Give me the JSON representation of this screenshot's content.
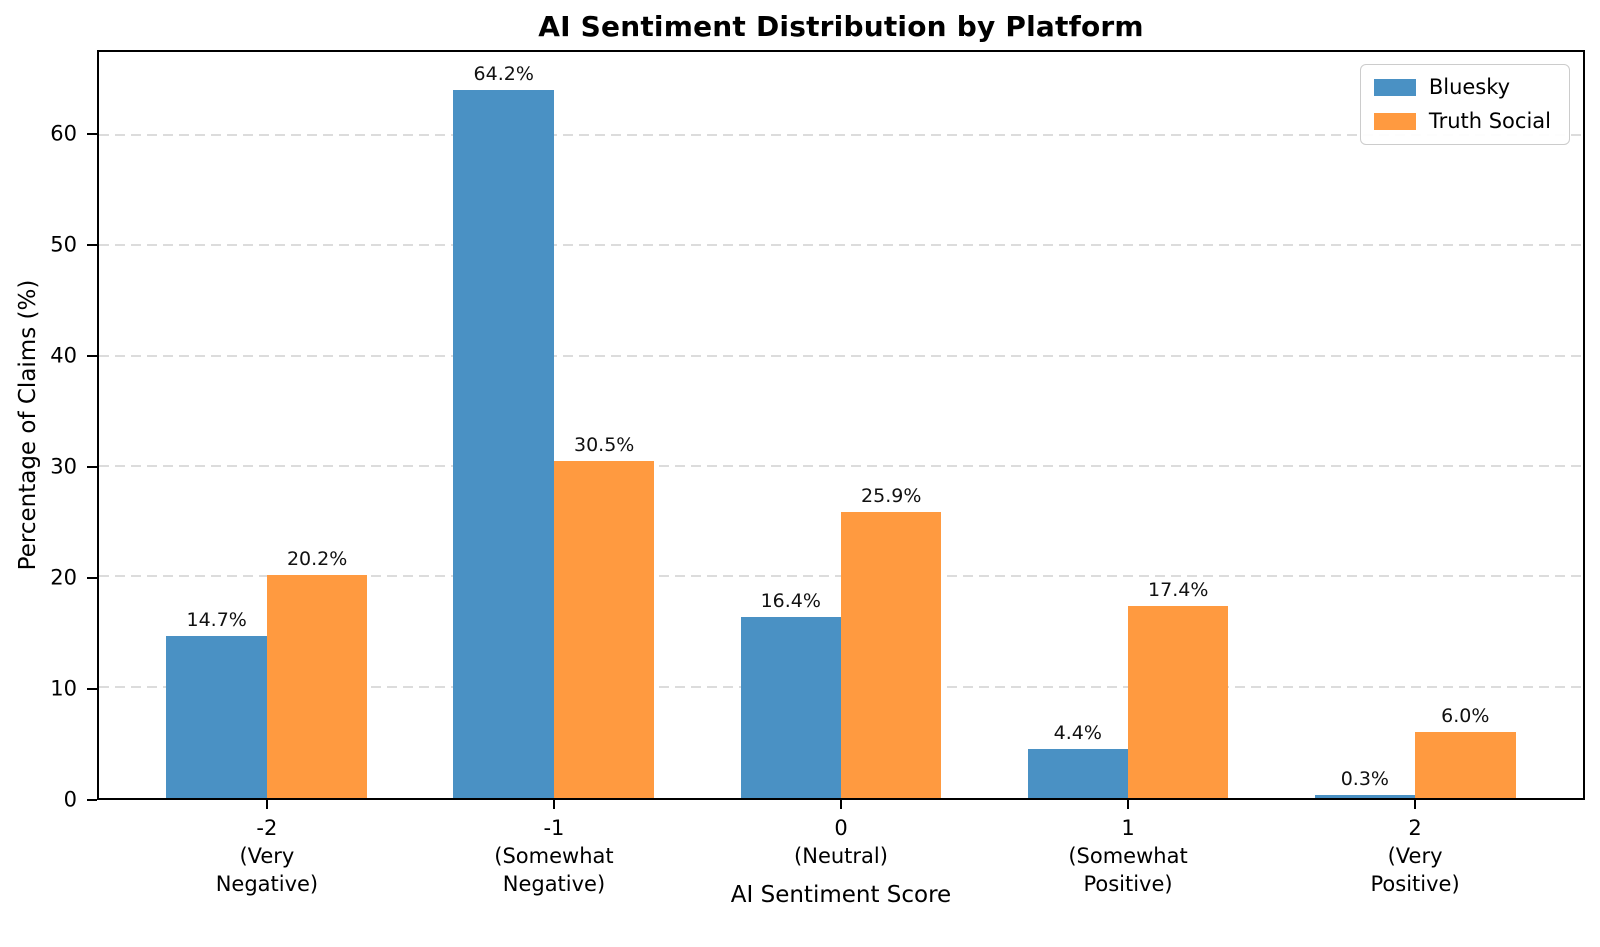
{
  "figure": {
    "title": "AI Sentiment Distribution by Platform"
  },
  "chart_data": {
    "type": "bar",
    "title": "AI Sentiment Distribution by Platform",
    "xlabel": "AI Sentiment Score",
    "ylabel": "Percentage of Claims (%)",
    "ylim": [
      0,
      67.6
    ],
    "yticks": [
      0,
      10,
      20,
      30,
      40,
      50,
      60
    ],
    "grid": "horizontal dashed gridlines",
    "legend_position": "upper-right",
    "categories": [
      {
        "tick": "-2",
        "label_lines": [
          "-2",
          "(Very",
          "Negative)"
        ]
      },
      {
        "tick": "-1",
        "label_lines": [
          "-1",
          "(Somewhat",
          "Negative)"
        ]
      },
      {
        "tick": "0",
        "label_lines": [
          "0",
          "(Neutral)"
        ]
      },
      {
        "tick": "1",
        "label_lines": [
          "1",
          "(Somewhat",
          "Positive)"
        ]
      },
      {
        "tick": "2",
        "label_lines": [
          "2",
          "(Very",
          "Positive)"
        ]
      }
    ],
    "series": [
      {
        "name": "Bluesky",
        "color": "#4a91c4",
        "values": [
          14.7,
          64.2,
          16.4,
          4.4,
          0.3
        ],
        "bar_labels": [
          "14.7%",
          "64.2%",
          "16.4%",
          "4.4%",
          "0.3%"
        ]
      },
      {
        "name": "Truth Social",
        "color": "#ff9a40",
        "values": [
          20.2,
          30.5,
          25.9,
          17.4,
          6.0
        ],
        "bar_labels": [
          "20.2%",
          "30.5%",
          "25.9%",
          "17.4%",
          "6.0%"
        ]
      }
    ],
    "colors": {
      "spine": "#000000",
      "grid": "#dcdcdc",
      "legend_border": "#cccccc",
      "background": "#ffffff"
    }
  }
}
